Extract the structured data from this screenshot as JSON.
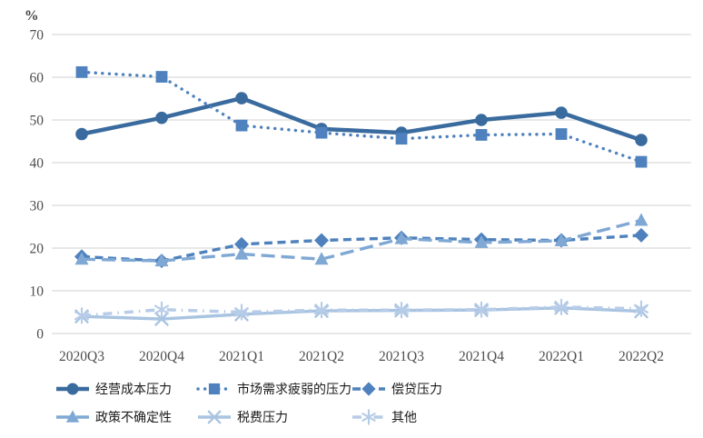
{
  "chart_data": {
    "type": "line",
    "title": "",
    "unit_label": "%",
    "xlabel": "",
    "ylabel": "",
    "ylim": [
      0,
      70
    ],
    "ytick_step": 10,
    "yticks": [
      0,
      10,
      20,
      30,
      40,
      50,
      60,
      70
    ],
    "grid": "horizontal",
    "gridline_color": "#d9d9d9",
    "axis_text_color": "#4d4d4d",
    "legend_position": "bottom-left-two-rows",
    "categories": [
      "2020Q3",
      "2020Q4",
      "2021Q1",
      "2021Q2",
      "2021Q3",
      "2021Q4",
      "2022Q1",
      "2022Q2"
    ],
    "series": [
      {
        "name": "经营成本压力",
        "marker": "circle",
        "line": "solid",
        "width": 4.5,
        "color": "#3a6b9e",
        "values": [
          46.7,
          50.5,
          55.1,
          47.9,
          47.0,
          50.0,
          51.7,
          45.3
        ]
      },
      {
        "name": "市场需求疲弱的压力",
        "marker": "square",
        "line": "dotted",
        "width": 3.4,
        "color": "#4e81bd",
        "values": [
          61.2,
          60.1,
          48.7,
          47.0,
          45.6,
          46.5,
          46.7,
          40.2
        ]
      },
      {
        "name": "偿贷压力",
        "marker": "diamond",
        "line": "dashed",
        "width": 3.4,
        "color": "#4e81bd",
        "values": [
          18.0,
          17.0,
          20.9,
          21.8,
          22.4,
          22.0,
          21.8,
          23.0
        ]
      },
      {
        "name": "政策不确定性",
        "marker": "triangle",
        "line": "long-dash",
        "width": 3.4,
        "color": "#7fa8d4",
        "values": [
          17.4,
          17.0,
          18.6,
          17.4,
          22.2,
          21.3,
          21.7,
          26.5
        ]
      },
      {
        "name": "税费压力",
        "marker": "x",
        "line": "solid",
        "width": 3.4,
        "color": "#a9c4e1",
        "values": [
          4.0,
          3.4,
          4.5,
          5.3,
          5.4,
          5.5,
          6.0,
          5.2
        ]
      },
      {
        "name": "其他",
        "marker": "asterisk",
        "line": "dash-dot",
        "width": 3.4,
        "color": "#b7cce8",
        "values": [
          4.2,
          5.6,
          5.0,
          5.5,
          5.5,
          5.6,
          6.2,
          5.8
        ]
      }
    ],
    "legend_rows": [
      [
        0,
        1,
        2
      ],
      [
        3,
        4,
        5
      ]
    ]
  }
}
